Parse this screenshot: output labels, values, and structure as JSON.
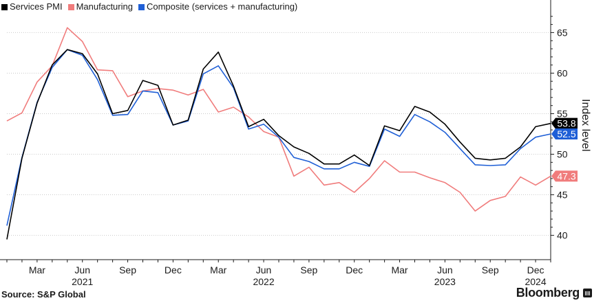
{
  "legend": [
    {
      "label": "Services PMI",
      "color": "#000000"
    },
    {
      "label": "Manufacturing",
      "color": "#f07c7c"
    },
    {
      "label": "Composite (services + manufacturing)",
      "color": "#1f5fd6"
    }
  ],
  "footer": {
    "source": "Source: S&P Global",
    "brand": "Bloomberg"
  },
  "chart_data": {
    "type": "line",
    "x": [
      "2021-01",
      "2021-02",
      "2021-03",
      "2021-04",
      "2021-05",
      "2021-06",
      "2021-07",
      "2021-08",
      "2021-09",
      "2021-10",
      "2021-11",
      "2021-12",
      "2022-01",
      "2022-02",
      "2022-03",
      "2022-04",
      "2022-05",
      "2022-06",
      "2022-07",
      "2022-08",
      "2022-09",
      "2022-10",
      "2022-11",
      "2022-12",
      "2023-01",
      "2023-02",
      "2023-03",
      "2023-04",
      "2023-05",
      "2023-06",
      "2023-07",
      "2023-08",
      "2023-09",
      "2023-10",
      "2023-11",
      "2023-12",
      "2024-01"
    ],
    "series": [
      {
        "name": "Services PMI",
        "color": "#000000",
        "values": [
          39.5,
          49.5,
          56.3,
          61.0,
          62.9,
          62.4,
          59.9,
          55.0,
          55.4,
          59.1,
          58.5,
          53.6,
          54.2,
          60.5,
          62.6,
          58.4,
          53.4,
          54.3,
          52.3,
          50.9,
          50.1,
          48.8,
          48.8,
          49.9,
          48.6,
          53.5,
          52.9,
          55.9,
          55.2,
          53.7,
          51.5,
          49.5,
          49.3,
          49.5,
          50.9,
          53.4,
          53.8
        ]
      },
      {
        "name": "Manufacturing",
        "color": "#f07c7c",
        "values": [
          54.1,
          55.1,
          58.9,
          60.9,
          65.6,
          63.9,
          60.4,
          60.3,
          57.1,
          57.8,
          58.1,
          57.9,
          57.3,
          58.0,
          55.2,
          55.8,
          54.6,
          52.8,
          52.1,
          47.3,
          48.4,
          46.2,
          46.5,
          45.3,
          47.0,
          49.2,
          47.8,
          47.8,
          47.1,
          46.5,
          45.3,
          43.0,
          44.3,
          44.8,
          47.2,
          46.2,
          47.3
        ]
      },
      {
        "name": "Composite (services + manufacturing)",
        "color": "#1f5fd6",
        "values": [
          41.2,
          49.6,
          56.4,
          60.7,
          62.9,
          62.2,
          59.2,
          54.8,
          54.9,
          57.8,
          57.6,
          53.6,
          54.1,
          59.9,
          60.9,
          58.2,
          53.1,
          53.7,
          52.1,
          49.6,
          49.1,
          48.2,
          48.2,
          49.0,
          48.5,
          53.1,
          52.2,
          54.9,
          54.0,
          52.7,
          50.7,
          48.7,
          48.6,
          48.7,
          50.7,
          52.1,
          52.5
        ]
      }
    ],
    "end_labels": [
      {
        "series": "Services PMI",
        "label": "53.8",
        "color": "#000000"
      },
      {
        "series": "Composite (services + manufacturing)",
        "label": "52.5",
        "color": "#1f5fd6"
      },
      {
        "series": "Manufacturing",
        "label": "47.3",
        "color": "#f07c7c"
      }
    ],
    "ylabel": "Index level",
    "ylim": [
      37,
      68
    ],
    "yticks": [
      "40",
      "45",
      "50",
      "55",
      "60",
      "65"
    ],
    "xticks": [
      {
        "month": "2021-03",
        "label": "Mar"
      },
      {
        "month": "2021-06",
        "label": "Jun",
        "year": "2021"
      },
      {
        "month": "2021-09",
        "label": "Sep"
      },
      {
        "month": "2021-12",
        "label": "Dec"
      },
      {
        "month": "2022-03",
        "label": "Mar"
      },
      {
        "month": "2022-06",
        "label": "Jun",
        "year": "2022"
      },
      {
        "month": "2022-09",
        "label": "Sep"
      },
      {
        "month": "2022-12",
        "label": "Dec"
      },
      {
        "month": "2023-03",
        "label": "Mar"
      },
      {
        "month": "2023-06",
        "label": "Jun",
        "year": "2023"
      },
      {
        "month": "2023-09",
        "label": "Sep"
      },
      {
        "month": "2023-12",
        "label": "Dec",
        "year": "2024"
      }
    ],
    "grid": "horizontal dotted",
    "legend_position": "top-left"
  }
}
